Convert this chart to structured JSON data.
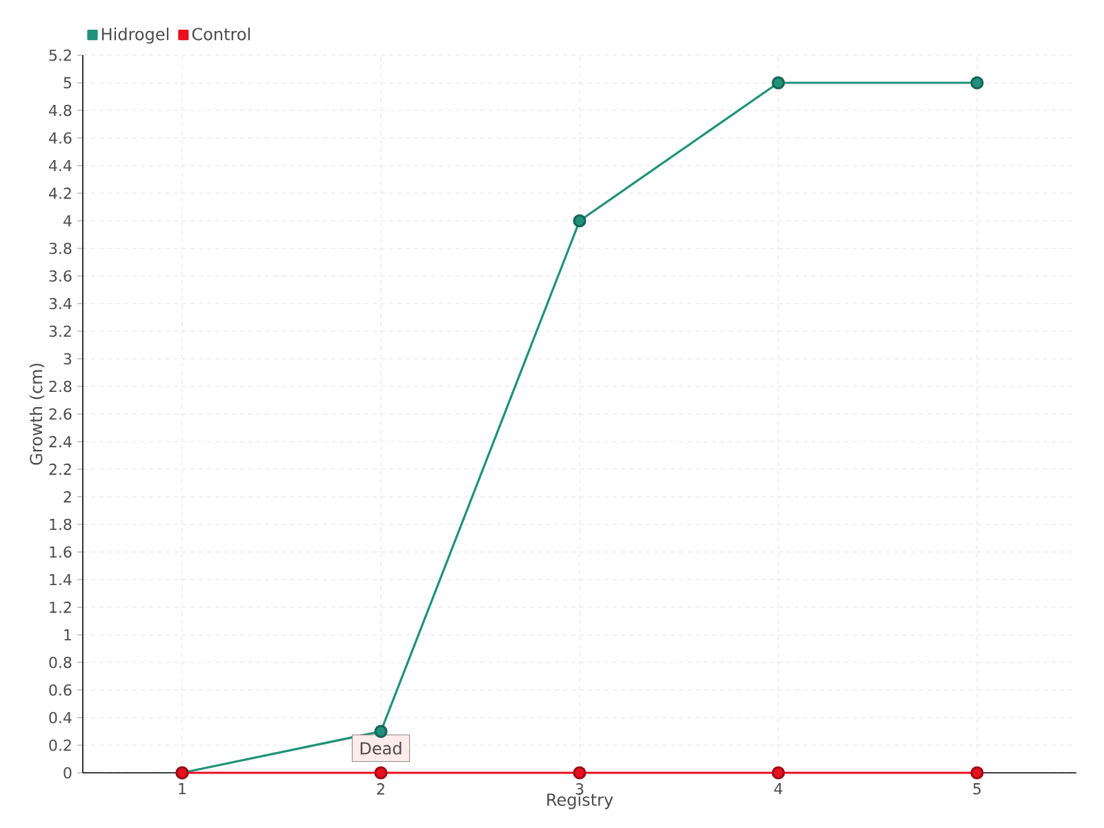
{
  "chart_data": {
    "type": "line",
    "xlabel": "Registry",
    "ylabel": "Growth (cm)",
    "categories": [
      "1",
      "2",
      "3",
      "4",
      "5"
    ],
    "series": [
      {
        "name": "Hidrogel",
        "color": "#1f9279",
        "values": [
          0,
          0.3,
          4,
          5,
          5
        ]
      },
      {
        "name": "Control",
        "color": "#e8101f",
        "values": [
          0,
          0,
          0,
          0,
          0
        ]
      }
    ],
    "ylim": [
      0,
      5.2
    ],
    "yticks": [
      0,
      0.2,
      0.4,
      0.6,
      0.8,
      1,
      1.2,
      1.4,
      1.6,
      1.8,
      2,
      2.2,
      2.4,
      2.6,
      2.8,
      3,
      3.2,
      3.4,
      3.6,
      3.8,
      4,
      4.2,
      4.4,
      4.6,
      4.8,
      5,
      5.2
    ],
    "annotations": [
      {
        "text": "Dead",
        "x": "2",
        "y": 0
      }
    ],
    "grid": true,
    "legend": "top left",
    "marker": "circle",
    "line_style": "solid"
  }
}
